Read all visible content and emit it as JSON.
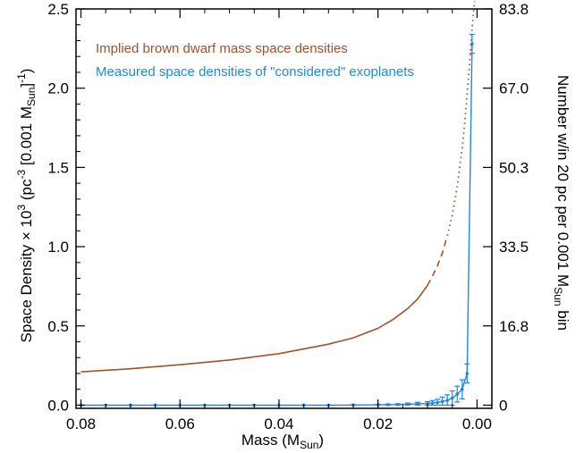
{
  "chart_data": {
    "type": "line",
    "xlabel": "Mass (M",
    "xlabel_sub": "Sun",
    "xlabel_close": ")",
    "ylabel_left": {
      "a": "Space Density × 10",
      "a_sup": "3",
      "b": " (pc",
      "b_sup": "-3",
      "c": " [0.001 M",
      "c_sub": "Sun",
      "d": "]",
      "d_sup": "-1",
      "e": ")"
    },
    "ylabel_right": {
      "a": "Number w/in 20 pc per 0.001 M",
      "a_sub": "Sun",
      "b": " bin"
    },
    "xlim": [
      0.081,
      -0.003
    ],
    "ylim": [
      -0.02,
      2.5
    ],
    "x_ticks": [
      0.08,
      0.06,
      0.04,
      0.02,
      0.0
    ],
    "x_tick_labels": [
      "0.08",
      "0.06",
      "0.04",
      "0.02",
      "0.00"
    ],
    "y_ticks": [
      0.0,
      0.5,
      1.0,
      1.5,
      2.0,
      2.5
    ],
    "y_tick_labels": [
      "0.0",
      "0.5",
      "1.0",
      "1.5",
      "2.0",
      "2.5"
    ],
    "y2_ticks": [
      0.0,
      0.5,
      1.0,
      1.5,
      2.0,
      2.5
    ],
    "y2_tick_labels": [
      "0",
      "16.8",
      "33.5",
      "50.3",
      "67.0",
      "83.8"
    ],
    "legend_position": "top-left",
    "series": [
      {
        "name": "Implied brown dwarf mass space densities",
        "color": "#a0522d",
        "segments": [
          {
            "style": "solid",
            "x": [
              0.08,
              0.07,
              0.06,
              0.05,
              0.04,
              0.03,
              0.025,
              0.02,
              0.017,
              0.014,
              0.012,
              0.01
            ],
            "y": [
              0.21,
              0.23,
              0.255,
              0.285,
              0.325,
              0.385,
              0.425,
              0.485,
              0.54,
              0.61,
              0.67,
              0.755
            ]
          },
          {
            "style": "dashed",
            "x": [
              0.01,
              0.009,
              0.008,
              0.007,
              0.006
            ],
            "y": [
              0.755,
              0.815,
              0.88,
              0.96,
              1.07
            ]
          },
          {
            "style": "dotted",
            "x": [
              0.006,
              0.005,
              0.004,
              0.003,
              0.0025,
              0.002,
              0.0015,
              0.001,
              0.0005
            ],
            "y": [
              1.07,
              1.2,
              1.38,
              1.62,
              1.78,
              1.96,
              2.16,
              2.38,
              2.55
            ]
          }
        ]
      },
      {
        "name": "Measured space densities of \"considered\" exoplanets",
        "color": "#1e88e5",
        "x": [
          0.08,
          0.075,
          0.07,
          0.065,
          0.06,
          0.055,
          0.05,
          0.045,
          0.04,
          0.035,
          0.03,
          0.025,
          0.02,
          0.018,
          0.016,
          0.014,
          0.012,
          0.01,
          0.009,
          0.008,
          0.007,
          0.006,
          0.005,
          0.004,
          0.003,
          0.002,
          0.001
        ],
        "y": [
          0.0,
          0.0,
          0.0,
          0.0,
          0.0,
          0.0,
          0.0,
          0.0,
          0.0,
          0.0,
          0.0,
          0.001,
          0.002,
          0.003,
          0.004,
          0.006,
          0.008,
          0.01,
          0.013,
          0.017,
          0.023,
          0.03,
          0.045,
          0.07,
          0.1,
          0.2,
          2.28
        ],
        "err": [
          0.0,
          0.0,
          0.0,
          0.0,
          0.0,
          0.0,
          0.0,
          0.0,
          0.0,
          0.0,
          0.0,
          0.002,
          0.003,
          0.004,
          0.005,
          0.007,
          0.01,
          0.012,
          0.016,
          0.02,
          0.028,
          0.036,
          0.045,
          0.05,
          0.06,
          0.06,
          0.06
        ]
      }
    ]
  }
}
